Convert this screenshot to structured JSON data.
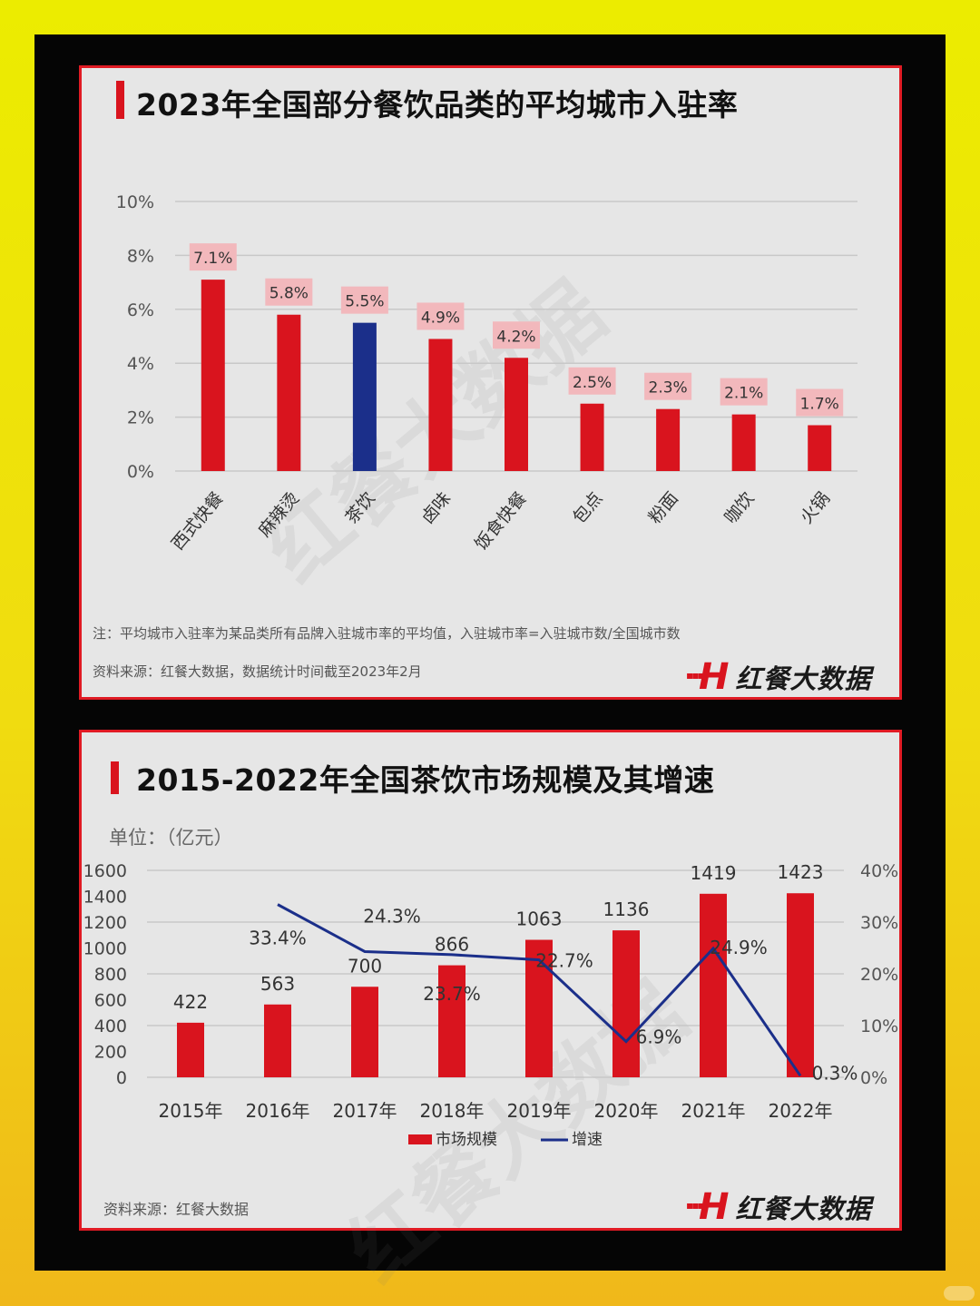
{
  "panel1": {
    "title": "2023年全国部分餐饮品类的平均城市入驻率",
    "note": "注：平均城市入驻率为某品类所有品牌入驻城市率的平均值，入驻城市率=入驻城市数/全国城市数",
    "source": "资料来源：红餐大数据，数据统计时间截至2023年2月",
    "brand": "红餐大数据",
    "watermark": "红餐大数据"
  },
  "panel2": {
    "title": "2015-2022年全国茶饮市场规模及其增速",
    "unit": "单位：（亿元）",
    "source": "资料来源：红餐大数据",
    "brand": "红餐大数据",
    "watermark": "红餐大数据"
  },
  "colors": {
    "red": "#d9141e",
    "navy": "#1b2f8a",
    "label_bg": "#f2b8bc"
  },
  "chart_data": [
    {
      "type": "bar",
      "title": "2023年全国部分餐饮品类的平均城市入驻率",
      "categories": [
        "西式快餐",
        "麻辣烫",
        "茶饮",
        "卤味",
        "饭食快餐",
        "包点",
        "粉面",
        "咖饮",
        "火锅"
      ],
      "values": [
        7.1,
        5.8,
        5.5,
        4.9,
        4.2,
        2.5,
        2.3,
        2.1,
        1.7
      ],
      "value_labels": [
        "7.1%",
        "5.8%",
        "5.5%",
        "4.9%",
        "4.2%",
        "2.5%",
        "2.3%",
        "2.1%",
        "1.7%"
      ],
      "highlight_index": 2,
      "yticks": [
        "0%",
        "2%",
        "4%",
        "6%",
        "8%",
        "10%"
      ],
      "ylim": [
        0,
        10
      ],
      "grid": true
    },
    {
      "type": "bar",
      "title": "2015-2022年全国茶饮市场规模及其增速",
      "categories": [
        "2015年",
        "2016年",
        "2017年",
        "2018年",
        "2019年",
        "2020年",
        "2021年",
        "2022年"
      ],
      "series": [
        {
          "name": "市场规模",
          "type": "bar",
          "values": [
            422,
            563,
            700,
            866,
            1063,
            1136,
            1419,
            1423
          ],
          "labels": [
            "422",
            "563",
            "700",
            "866",
            "1063",
            "1136",
            "1419",
            "1423"
          ]
        },
        {
          "name": "增速",
          "type": "line",
          "axis": "right",
          "values": [
            null,
            33.4,
            24.3,
            23.7,
            22.7,
            6.9,
            24.9,
            0.3
          ],
          "labels": [
            "",
            "33.4%",
            "24.3%",
            "23.7%",
            "22.7%",
            "6.9%",
            "24.9%",
            "0.3%"
          ]
        }
      ],
      "yticks_left": [
        "0",
        "200",
        "400",
        "600",
        "800",
        "1000",
        "1200",
        "1400",
        "1600"
      ],
      "ylim_left": [
        0,
        1600
      ],
      "yticks_right": [
        "0%",
        "10%",
        "20%",
        "30%",
        "40%"
      ],
      "ylim_right": [
        0,
        40
      ],
      "legend_position": "bottom",
      "grid": true
    }
  ]
}
